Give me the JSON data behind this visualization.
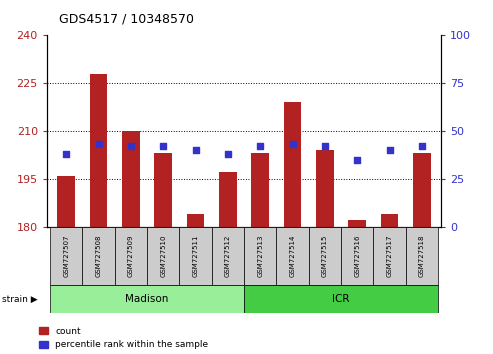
{
  "title": "GDS4517 / 10348570",
  "samples": [
    "GSM727507",
    "GSM727508",
    "GSM727509",
    "GSM727510",
    "GSM727511",
    "GSM727512",
    "GSM727513",
    "GSM727514",
    "GSM727515",
    "GSM727516",
    "GSM727517",
    "GSM727518"
  ],
  "count_values": [
    196,
    228,
    210,
    203,
    184,
    197,
    203,
    219,
    204,
    182,
    184,
    203
  ],
  "percentile_values": [
    38,
    43,
    42,
    42,
    40,
    38,
    42,
    43,
    42,
    35,
    40,
    42
  ],
  "ymin": 180,
  "ymax": 240,
  "yticks_left": [
    180,
    195,
    210,
    225,
    240
  ],
  "yticks_right": [
    0,
    25,
    50,
    75,
    100
  ],
  "bar_color": "#b22222",
  "dot_color": "#3333cc",
  "label_bg_color": "#cccccc",
  "madison_color": "#99ee99",
  "icr_color": "#44cc44",
  "madison_samples": 6,
  "icr_samples": 6,
  "legend_count_label": "count",
  "legend_pct_label": "percentile rank within the sample",
  "strain_label": "strain",
  "madison_label": "Madison",
  "icr_label": "ICR"
}
